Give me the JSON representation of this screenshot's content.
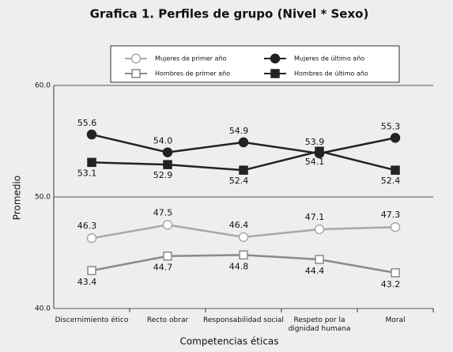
{
  "chart_data": {
    "type": "line",
    "title": "Grafica 1. Perfiles de grupo (Nivel * Sexo)",
    "x_label": "Competencias éticas",
    "y_label": "Promedio",
    "categories": [
      "Discernimiento ético",
      "Recto obrar",
      "Responsabilidad social",
      "Respeto por la dignidad humana",
      "Moral"
    ],
    "ylim": [
      40,
      60
    ],
    "yticks": [
      {
        "value": 40,
        "label": "40.0"
      },
      {
        "value": 50,
        "label": "50.0"
      },
      {
        "value": 60,
        "label": "60.0"
      }
    ],
    "grid": true,
    "series": [
      {
        "name": "Mujeres de primer año",
        "color": "#a8a8a8",
        "marker": "circle",
        "filled": false,
        "values": [
          46.3,
          47.5,
          46.4,
          47.1,
          47.3
        ]
      },
      {
        "name": "Mujeres de último año",
        "color": "#222222",
        "marker": "circle",
        "filled": true,
        "values": [
          55.6,
          54.0,
          54.9,
          53.9,
          55.3
        ],
        "value_labels": [
          "55.6",
          "54.0",
          "54.9",
          "53.9",
          "55.3"
        ]
      },
      {
        "name": "Hombres de primer año",
        "color": "#8a8a8a",
        "marker": "square",
        "filled": false,
        "values": [
          43.4,
          44.7,
          44.8,
          44.4,
          43.2
        ]
      },
      {
        "name": "Hombres de último año",
        "color": "#222222",
        "marker": "square",
        "filled": true,
        "values": [
          53.1,
          52.9,
          52.4,
          54.1,
          52.4
        ]
      }
    ]
  }
}
